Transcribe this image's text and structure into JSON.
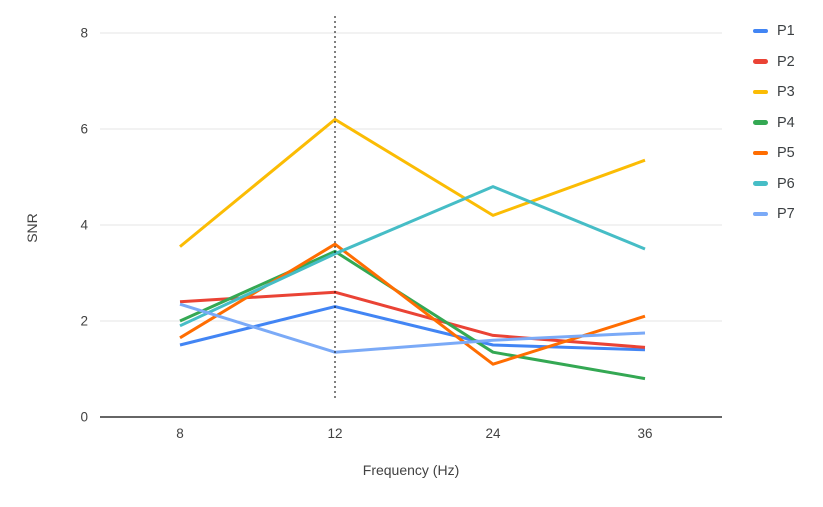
{
  "chart_data": {
    "type": "line",
    "title": "",
    "xlabel": "Frequency (Hz)",
    "ylabel": "SNR",
    "categories": [
      "8",
      "12",
      "24",
      "36"
    ],
    "x_values": [
      8,
      12,
      24,
      36
    ],
    "y_ticks": [
      0,
      2,
      4,
      6,
      8
    ],
    "ylim": [
      0,
      8
    ],
    "grid": true,
    "legend_position": "right",
    "line_width": 3,
    "annotation": {
      "type": "vertical-dotted-line",
      "at_category": "12",
      "color": "#000000"
    },
    "series": [
      {
        "name": "P1",
        "color": "#4285F4",
        "values": [
          1.5,
          2.3,
          1.5,
          1.4
        ]
      },
      {
        "name": "P2",
        "color": "#EA4335",
        "values": [
          2.4,
          2.6,
          1.7,
          1.45
        ]
      },
      {
        "name": "P3",
        "color": "#FBBC04",
        "values": [
          3.55,
          6.2,
          4.2,
          5.35
        ]
      },
      {
        "name": "P4",
        "color": "#34A853",
        "values": [
          2.0,
          3.45,
          1.35,
          0.8
        ]
      },
      {
        "name": "P5",
        "color": "#FF6D01",
        "values": [
          1.65,
          3.6,
          1.1,
          2.1
        ]
      },
      {
        "name": "P6",
        "color": "#46BDC6",
        "values": [
          1.9,
          3.4,
          4.8,
          3.5
        ]
      },
      {
        "name": "P7",
        "color": "#7BAAF7",
        "values": [
          2.35,
          1.35,
          1.6,
          1.75
        ]
      }
    ],
    "colors": {
      "gridline": "#E6E6E6",
      "axis_line": "#666666",
      "tick_label": "#424242",
      "axis_title": "#424242",
      "legend_text": "#3C4043",
      "background": "#FFFFFF"
    }
  }
}
